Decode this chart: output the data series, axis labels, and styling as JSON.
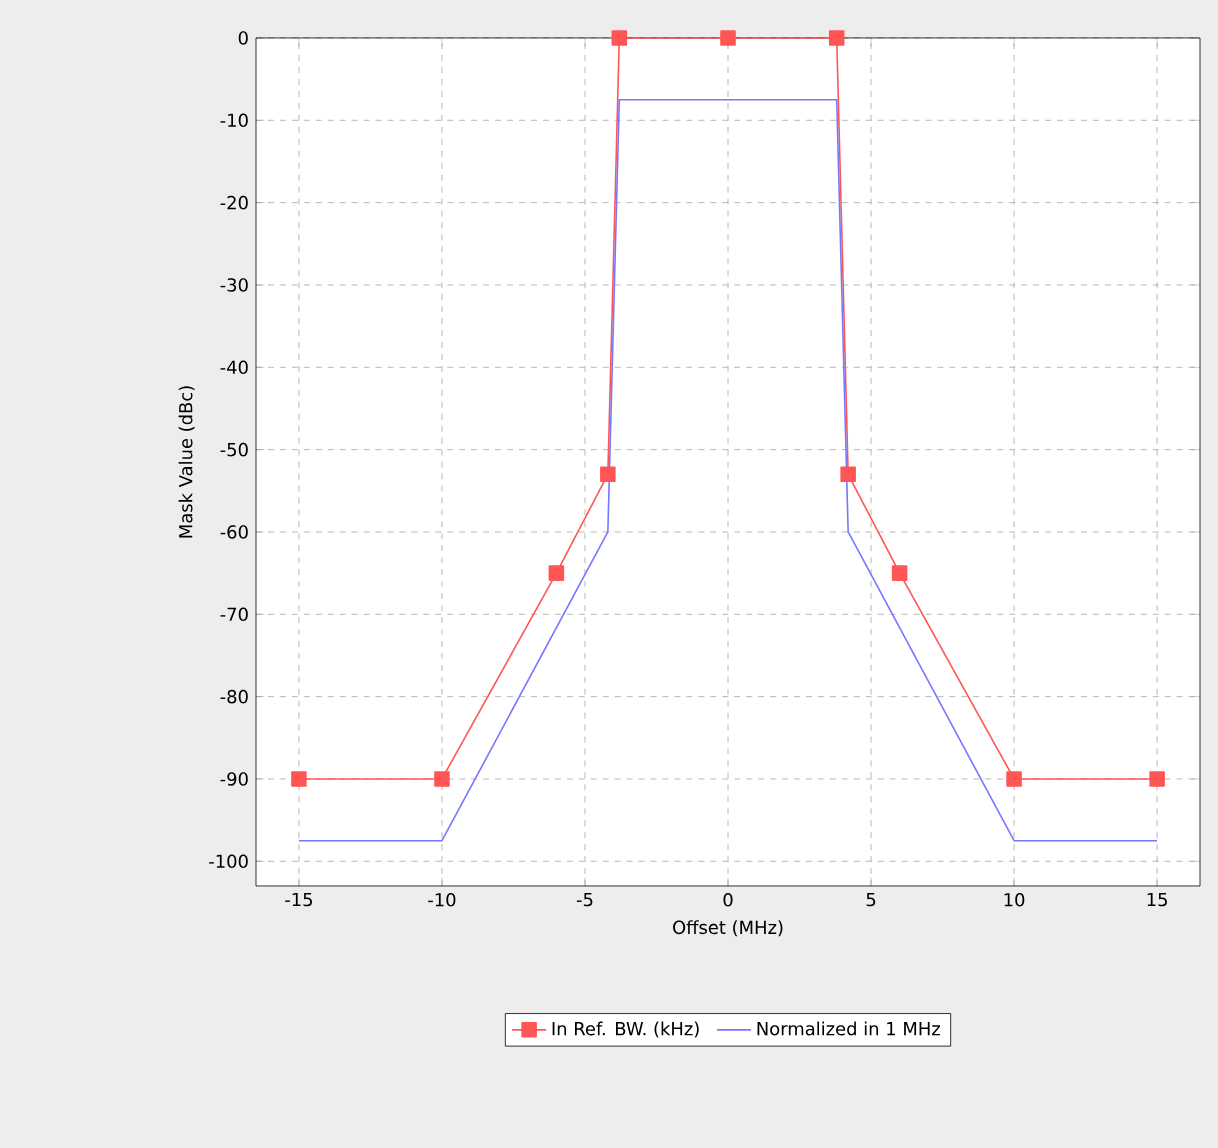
{
  "chart_data": {
    "type": "line",
    "xlabel": "Offset (MHz)",
    "ylabel": "Mask Value (dBc)",
    "series": [
      {
        "name": "In Ref. BW. (kHz)",
        "color": "#ff5555",
        "marker": "square",
        "x": [
          -15,
          -10,
          -6,
          -4.2,
          -3.8,
          0,
          3.8,
          4.2,
          6,
          10,
          15
        ],
        "values": [
          -90,
          -90,
          -65,
          -53,
          0,
          0,
          0,
          -53,
          -65,
          -90,
          -90
        ]
      },
      {
        "name": "Normalized in 1 MHz",
        "color": "#7777ff",
        "marker": "none",
        "x": [
          -15,
          -10,
          -4.2,
          -3.8,
          3.8,
          4.2,
          10,
          15
        ],
        "values": [
          -97.5,
          -97.5,
          -60,
          -7.5,
          -7.5,
          -60,
          -97.5,
          -97.5
        ]
      }
    ],
    "xlim": [
      -16.5,
      16.5
    ],
    "ylim": [
      -103,
      0
    ],
    "xticks": [
      -15,
      -10,
      -5,
      0,
      5,
      10,
      15
    ],
    "yticks": [
      -100,
      -90,
      -80,
      -70,
      -60,
      -50,
      -40,
      -30,
      -20,
      -10,
      0
    ],
    "grid": true,
    "legend": "bottom"
  }
}
